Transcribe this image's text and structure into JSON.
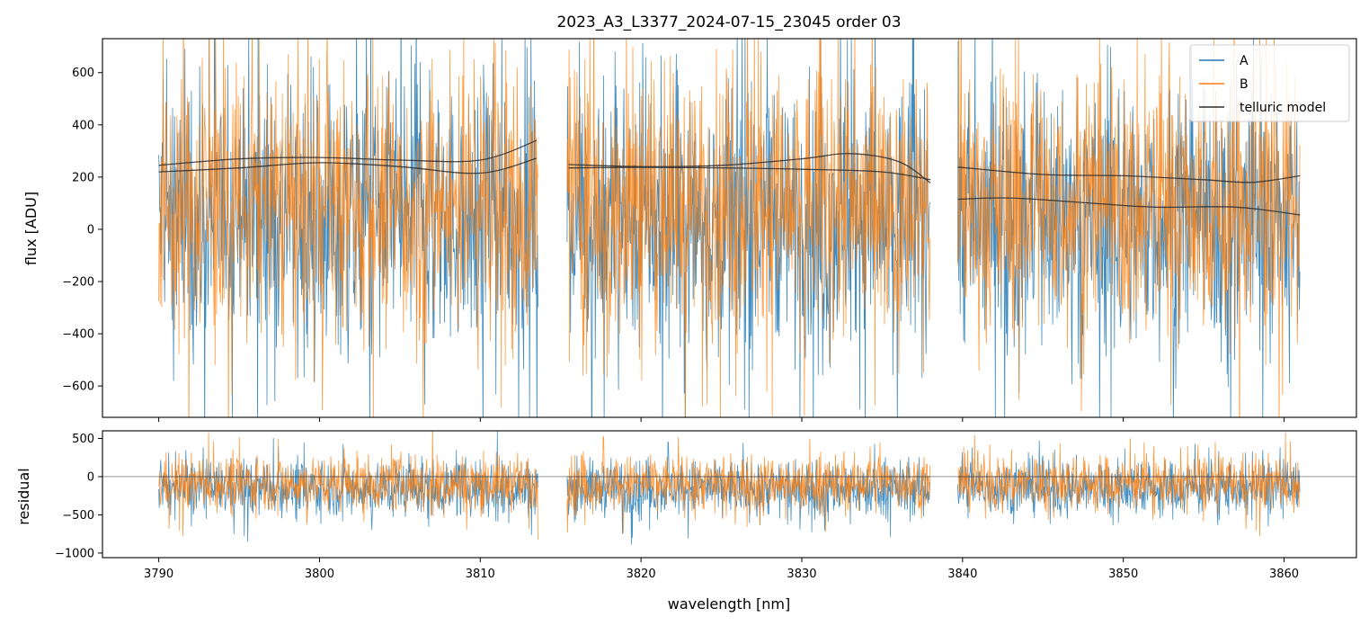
{
  "chart_data": [
    {
      "type": "line",
      "panel": "main",
      "title": "2023_A3_L3377_2024-07-15_23045  order 03",
      "xlabel": "",
      "ylabel": "flux [ADU]",
      "xlim": [
        3786.5,
        3864.5
      ],
      "ylim": [
        -720,
        730
      ],
      "yticks": [
        -600,
        -400,
        -200,
        0,
        200,
        400,
        600
      ],
      "ytick_labels": [
        "−600",
        "−400",
        "−200",
        "0",
        "200",
        "400",
        "600"
      ],
      "xticks": [
        3790,
        3800,
        3810,
        3820,
        3830,
        3840,
        3850,
        3860
      ],
      "grid": false,
      "legend": "top-right",
      "segments": [
        [
          3790.0,
          3813.6
        ],
        [
          3815.4,
          3838.0
        ],
        [
          3839.7,
          3861.0
        ]
      ],
      "series": [
        {
          "name": "A",
          "color": "#1f77b4",
          "style": "noisy-spectrum",
          "envelope_low": -700,
          "envelope_high": 720,
          "typical_low": -350,
          "typical_high": 420,
          "baseline": 40
        },
        {
          "name": "B",
          "color": "#ff7f0e",
          "style": "noisy-spectrum",
          "envelope_low": -700,
          "envelope_high": 720,
          "typical_low": -250,
          "typical_high": 480,
          "baseline": 100
        },
        {
          "name": "telluric model",
          "color": "#2b2b2b",
          "style": "smooth",
          "curves": [
            {
              "x": [
                3790,
                3795,
                3800,
                3805,
                3810,
                3813.5
              ],
              "y": [
                245,
                270,
                275,
                265,
                265,
                340
              ]
            },
            {
              "x": [
                3790,
                3795,
                3800,
                3805,
                3810,
                3813.5
              ],
              "y": [
                220,
                235,
                255,
                240,
                215,
                272
              ]
            },
            {
              "x": [
                3815.5,
                3820,
                3825,
                3830,
                3833,
                3836,
                3838
              ],
              "y": [
                248,
                240,
                245,
                270,
                290,
                260,
                178
              ]
            },
            {
              "x": [
                3815.5,
                3820,
                3825,
                3830,
                3835,
                3838
              ],
              "y": [
                235,
                237,
                235,
                230,
                220,
                190
              ]
            },
            {
              "x": [
                3839.7,
                3845,
                3850,
                3855,
                3858,
                3861
              ],
              "y": [
                238,
                210,
                205,
                190,
                180,
                205
              ]
            },
            {
              "x": [
                3839.7,
                3843,
                3848,
                3852,
                3857,
                3861
              ],
              "y": [
                115,
                120,
                100,
                85,
                85,
                55
              ]
            }
          ]
        }
      ]
    },
    {
      "type": "line",
      "panel": "residual",
      "title": "",
      "xlabel": "wavelength [nm]",
      "ylabel": "residual",
      "xlim": [
        3786.5,
        3864.5
      ],
      "ylim": [
        -1060,
        600
      ],
      "yticks": [
        -1000,
        -500,
        0,
        500
      ],
      "ytick_labels": [
        "−1000",
        "−500",
        "0",
        "500"
      ],
      "xticks": [
        3790,
        3800,
        3810,
        3820,
        3830,
        3840,
        3850,
        3860
      ],
      "xtick_labels": [
        "3790",
        "3800",
        "3810",
        "3820",
        "3830",
        "3840",
        "3850",
        "3860"
      ],
      "zero_line": 0,
      "series": [
        {
          "name": "A",
          "color": "#1f77b4",
          "center": -150,
          "spread": 420
        },
        {
          "name": "B",
          "color": "#ff7f0e",
          "center": -80,
          "spread": 420
        }
      ]
    }
  ]
}
